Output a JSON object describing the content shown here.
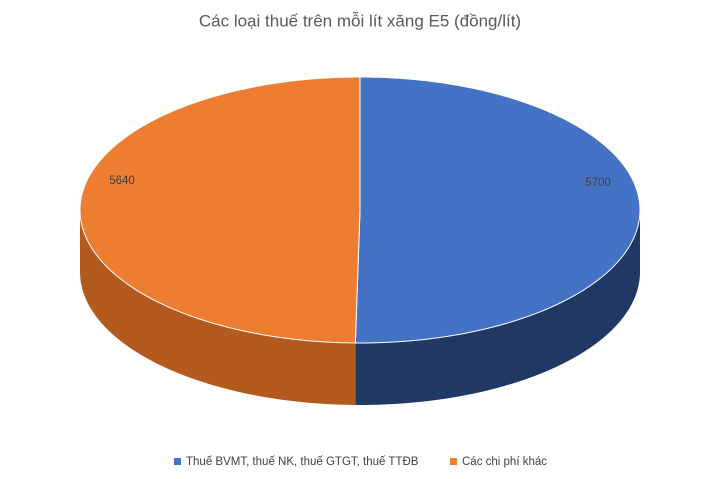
{
  "chart_data": {
    "type": "pie",
    "title": "Các loại thuế trên mỗi lít xăng E5 (đồng/lít)",
    "categories": [
      "Thuế BVMT, thuế NK, thuế GTGT, thuế TTĐB",
      "Các chi phí khác"
    ],
    "values": [
      5700,
      5640
    ],
    "colors": [
      "#4472c4",
      "#ed7d31"
    ],
    "side_colors": [
      "#1f3864",
      "#b35a1f"
    ],
    "legend": "bottom"
  }
}
